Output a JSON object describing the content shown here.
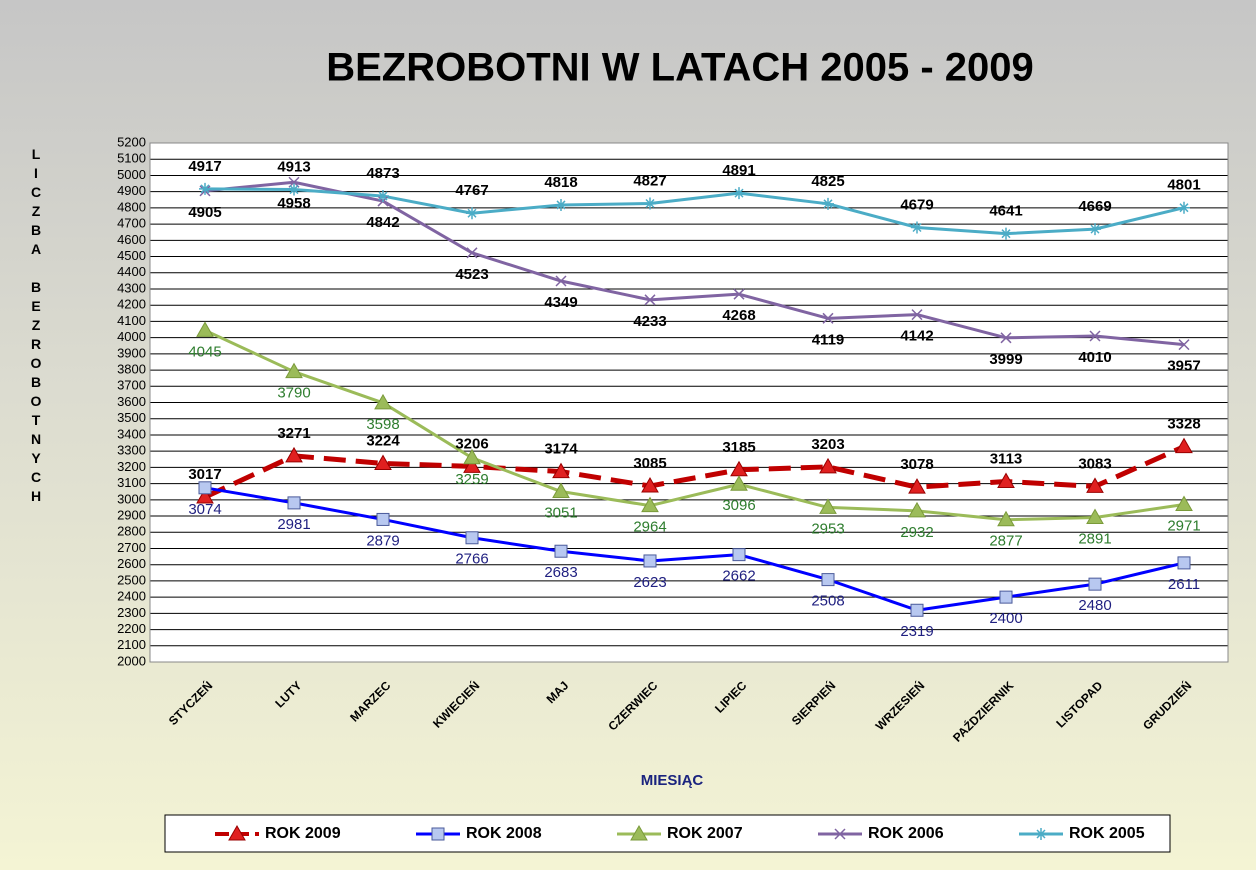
{
  "chart_data": {
    "type": "line",
    "title": "BEZROBOTNI W LATACH 2005 - 2009",
    "x_label": "MIESIĄC",
    "y_label": "LICZBA BEZROBOTNYCH",
    "categories": [
      "STYCZEŃ",
      "LUTY",
      "MARZEC",
      "KWIECIEŃ",
      "MAJ",
      "CZERWIEC",
      "LIPIEC",
      "SIERPIEŃ",
      "WRZESIEŃ",
      "PAŹDZIERNIK",
      "LISTOPAD",
      "GRUDZIEŃ"
    ],
    "ylim": [
      2000,
      5200
    ],
    "yticks": [
      2000,
      2100,
      2200,
      2300,
      2400,
      2500,
      2600,
      2700,
      2800,
      2900,
      3000,
      3100,
      3200,
      3300,
      3400,
      3500,
      3600,
      3700,
      3800,
      3900,
      4000,
      4100,
      4200,
      4300,
      4400,
      4500,
      4600,
      4700,
      4800,
      4900,
      5000,
      5100,
      5200
    ],
    "grid": true,
    "legend": "bottom",
    "series": [
      {
        "name": "ROK 2009",
        "color": "#c00000",
        "marker": "triangle",
        "marker_color": "#e02020",
        "line_style": "dashed",
        "label_color": "#000000",
        "label_position": "above",
        "values": [
          3017,
          3271,
          3224,
          3206,
          3174,
          3085,
          3185,
          3203,
          3078,
          3113,
          3083,
          3328
        ]
      },
      {
        "name": "ROK 2008",
        "color": "#0000ff",
        "marker": "square",
        "marker_color": "#b8c8f0",
        "line_style": "solid",
        "label_color": "#1f1f80",
        "label_position": "below",
        "values": [
          3074,
          2981,
          2879,
          2766,
          2683,
          2623,
          2662,
          2508,
          2319,
          2400,
          2480,
          2611
        ]
      },
      {
        "name": "ROK 2007",
        "color": "#9bbb59",
        "marker": "triangle",
        "marker_color": "#9bbb59",
        "line_style": "solid",
        "label_color": "#2e7d2e",
        "label_position": "below",
        "values": [
          4045,
          3790,
          3598,
          3259,
          3051,
          2964,
          3096,
          2953,
          2932,
          2877,
          2891,
          2971
        ]
      },
      {
        "name": "ROK 2006",
        "color": "#8064a2",
        "marker": "x",
        "marker_color": "#8064a2",
        "line_style": "solid",
        "label_color": "#000000",
        "label_position": "below",
        "values": [
          4905,
          4958,
          4842,
          4523,
          4349,
          4233,
          4268,
          4119,
          4142,
          3999,
          4010,
          3957
        ]
      },
      {
        "name": "ROK 2005",
        "color": "#4bacc6",
        "marker": "star",
        "marker_color": "#4bacc6",
        "line_style": "solid",
        "label_color": "#000000",
        "label_position": "above",
        "values": [
          4917,
          4913,
          4873,
          4767,
          4818,
          4827,
          4891,
          4825,
          4679,
          4641,
          4669,
          4801
        ]
      }
    ]
  }
}
